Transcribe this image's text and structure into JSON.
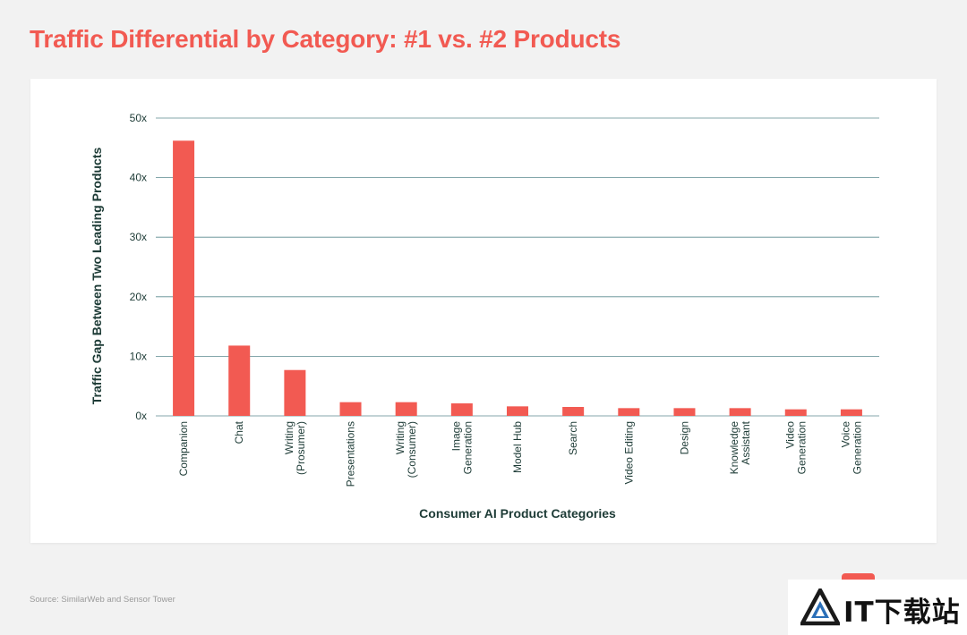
{
  "title": "Traffic Differential by Category: #1 vs. #2 Products",
  "source": "Source: SimilarWeb and Sensor Tower",
  "watermark": {
    "text": "IT下载站",
    "icon": "triangle-logo-icon"
  },
  "colors": {
    "accent": "#f25a52",
    "bar": "#f25a52",
    "grid": "#5b8a8f",
    "axis_text": "#1d3b36"
  },
  "chart_data": {
    "type": "bar",
    "xlabel": "Consumer AI Product Categories",
    "ylabel": "Traffic Gap Between Two Leading Products",
    "ylim": [
      0,
      50
    ],
    "yticks": [
      0,
      10,
      20,
      30,
      40,
      50
    ],
    "ytick_labels": [
      "0x",
      "10x",
      "20x",
      "30x",
      "40x",
      "50x"
    ],
    "grid": true,
    "categories": [
      [
        "Companion"
      ],
      [
        "Chat"
      ],
      [
        "Writing",
        "(Prosumer)"
      ],
      [
        "Presentations"
      ],
      [
        "Writing",
        "(Consumer)"
      ],
      [
        "Image",
        "Generation"
      ],
      [
        "Model Hub"
      ],
      [
        "Search"
      ],
      [
        "Video Editing"
      ],
      [
        "Design"
      ],
      [
        "Knowledge",
        "Assistant"
      ],
      [
        "Video",
        "Generation"
      ],
      [
        "Voice",
        "Generation"
      ]
    ],
    "values": [
      46.2,
      11.8,
      7.7,
      2.3,
      2.3,
      2.1,
      1.6,
      1.5,
      1.3,
      1.3,
      1.3,
      1.1,
      1.1
    ]
  }
}
